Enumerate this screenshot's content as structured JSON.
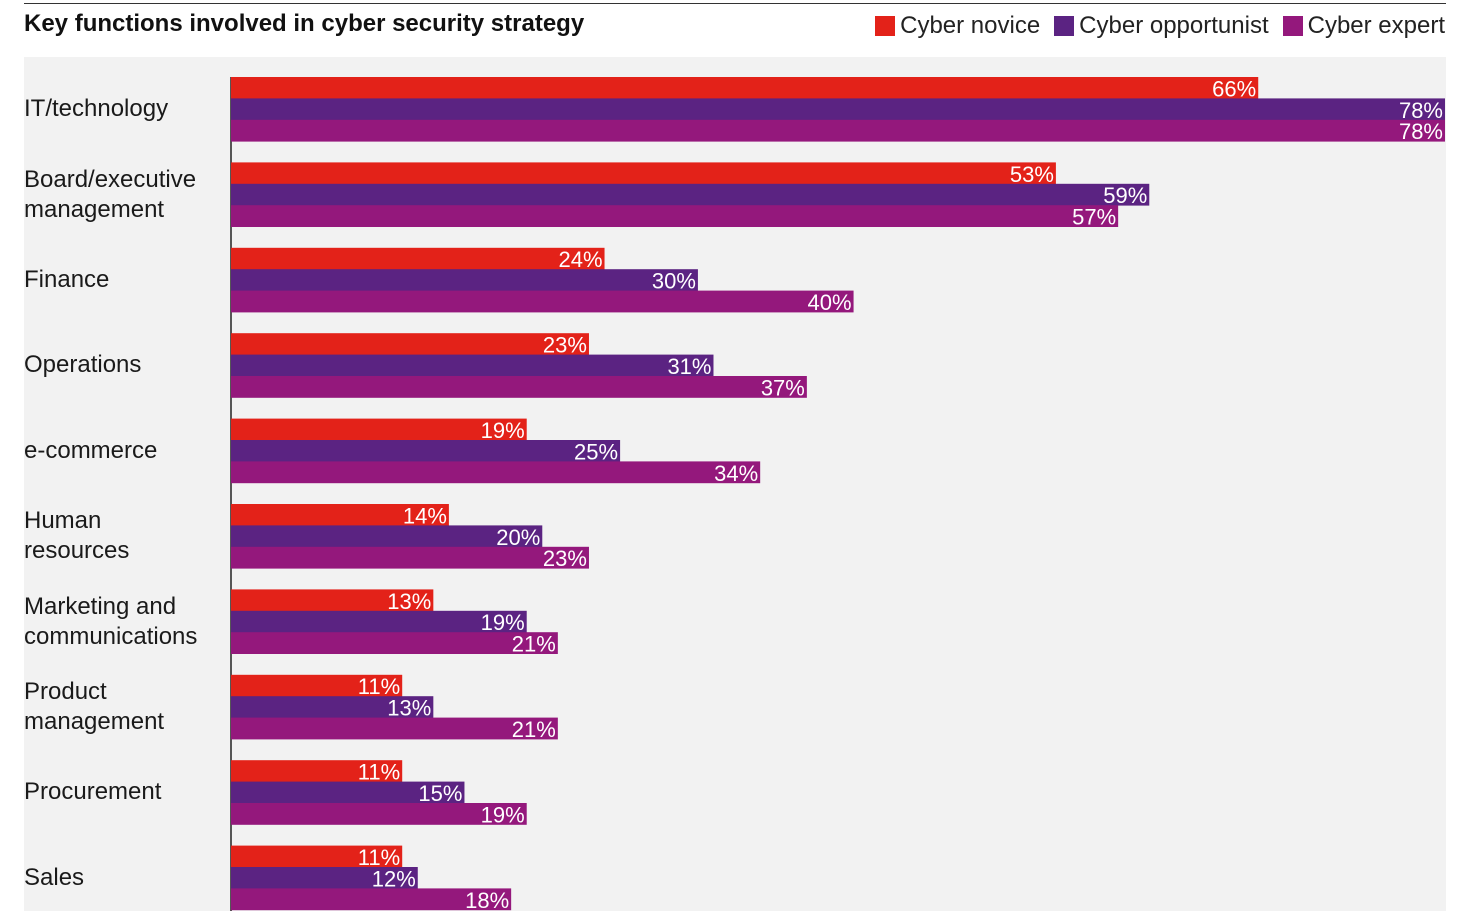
{
  "chart_data": {
    "type": "bar",
    "orientation": "horizontal",
    "title": "Key functions involved in cyber security strategy",
    "categories": [
      "IT/technology",
      "Board/executive\nmanagement",
      "Finance",
      "Operations",
      "e-commerce",
      "Human\nresources",
      "Marketing and\ncommunications",
      "Product\nmanagement",
      "Procurement",
      "Sales"
    ],
    "series": [
      {
        "name": "Cyber novice",
        "color": "#e32219",
        "values": [
          66,
          53,
          24,
          23,
          19,
          14,
          13,
          11,
          11,
          11
        ]
      },
      {
        "name": "Cyber opportunist",
        "color": "#5b2382",
        "values": [
          78,
          59,
          30,
          31,
          25,
          20,
          19,
          13,
          15,
          12
        ]
      },
      {
        "name": "Cyber expert",
        "color": "#94187c",
        "values": [
          78,
          57,
          40,
          37,
          34,
          23,
          21,
          21,
          19,
          18
        ]
      }
    ],
    "value_suffix": "%",
    "xlim": [
      0,
      78
    ],
    "legend_position": "top-right",
    "grid": false
  }
}
